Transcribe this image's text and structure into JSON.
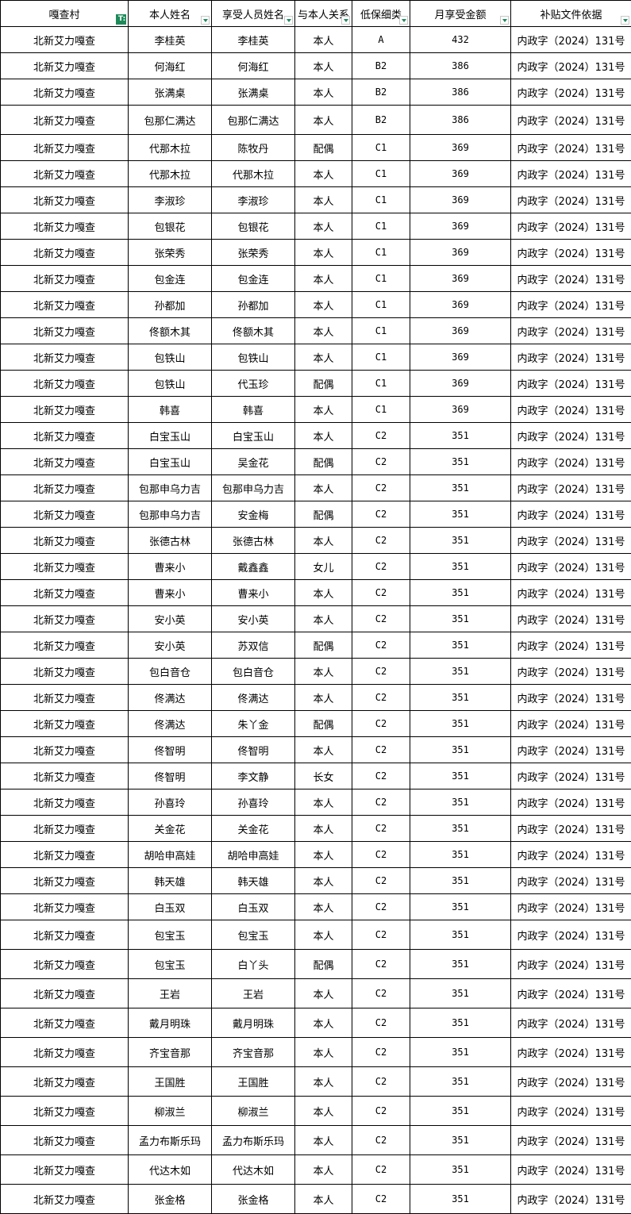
{
  "headers": [
    "嘎查村",
    "本人姓名",
    "享受人员姓名",
    "与本人关系",
    "低保细类",
    "月享受金额",
    "补贴文件依据"
  ],
  "filter_active_column": 0,
  "accent_color": "#1e8a5a",
  "rows": [
    [
      "北新艾力嘎查",
      "李桂英",
      "李桂英",
      "本人",
      "A",
      "432",
      "内政字（2024）131号"
    ],
    [
      "北新艾力嘎查",
      "何海红",
      "何海红",
      "本人",
      "B2",
      "386",
      "内政字（2024）131号"
    ],
    [
      "北新艾力嘎查",
      "张满桌",
      "张满桌",
      "本人",
      "B2",
      "386",
      "内政字（2024）131号"
    ],
    [
      "北新艾力嘎查",
      "包那仁满达",
      "包那仁满达",
      "本人",
      "B2",
      "386",
      "内政字（2024）131号"
    ],
    [
      "北新艾力嘎查",
      "代那木拉",
      "陈牧丹",
      "配偶",
      "C1",
      "369",
      "内政字（2024）131号"
    ],
    [
      "北新艾力嘎查",
      "代那木拉",
      "代那木拉",
      "本人",
      "C1",
      "369",
      "内政字（2024）131号"
    ],
    [
      "北新艾力嘎查",
      "李淑珍",
      "李淑珍",
      "本人",
      "C1",
      "369",
      "内政字（2024）131号"
    ],
    [
      "北新艾力嘎查",
      "包银花",
      "包银花",
      "本人",
      "C1",
      "369",
      "内政字（2024）131号"
    ],
    [
      "北新艾力嘎查",
      "张荣秀",
      "张荣秀",
      "本人",
      "C1",
      "369",
      "内政字（2024）131号"
    ],
    [
      "北新艾力嘎查",
      "包金连",
      "包金连",
      "本人",
      "C1",
      "369",
      "内政字（2024）131号"
    ],
    [
      "北新艾力嘎查",
      "孙都加",
      "孙都加",
      "本人",
      "C1",
      "369",
      "内政字（2024）131号"
    ],
    [
      "北新艾力嘎查",
      "佟额木其",
      "佟额木其",
      "本人",
      "C1",
      "369",
      "内政字（2024）131号"
    ],
    [
      "北新艾力嘎查",
      "包铁山",
      "包铁山",
      "本人",
      "C1",
      "369",
      "内政字（2024）131号"
    ],
    [
      "北新艾力嘎查",
      "包铁山",
      "代玉珍",
      "配偶",
      "C1",
      "369",
      "内政字（2024）131号"
    ],
    [
      "北新艾力嘎查",
      "韩喜",
      "韩喜",
      "本人",
      "C1",
      "369",
      "内政字（2024）131号"
    ],
    [
      "北新艾力嘎查",
      "白宝玉山",
      "白宝玉山",
      "本人",
      "C2",
      "351",
      "内政字（2024）131号"
    ],
    [
      "北新艾力嘎查",
      "白宝玉山",
      "吴金花",
      "配偶",
      "C2",
      "351",
      "内政字（2024）131号"
    ],
    [
      "北新艾力嘎查",
      "包那申乌力吉",
      "包那申乌力吉",
      "本人",
      "C2",
      "351",
      "内政字（2024）131号"
    ],
    [
      "北新艾力嘎查",
      "包那申乌力吉",
      "安金梅",
      "配偶",
      "C2",
      "351",
      "内政字（2024）131号"
    ],
    [
      "北新艾力嘎查",
      "张德古林",
      "张德古林",
      "本人",
      "C2",
      "351",
      "内政字（2024）131号"
    ],
    [
      "北新艾力嘎查",
      "曹来小",
      "戴鑫鑫",
      "女儿",
      "C2",
      "351",
      "内政字（2024）131号"
    ],
    [
      "北新艾力嘎查",
      "曹来小",
      "曹来小",
      "本人",
      "C2",
      "351",
      "内政字（2024）131号"
    ],
    [
      "北新艾力嘎查",
      "安小英",
      "安小英",
      "本人",
      "C2",
      "351",
      "内政字（2024）131号"
    ],
    [
      "北新艾力嘎查",
      "安小英",
      "苏双信",
      "配偶",
      "C2",
      "351",
      "内政字（2024）131号"
    ],
    [
      "北新艾力嘎查",
      "包白音仓",
      "包白音仓",
      "本人",
      "C2",
      "351",
      "内政字（2024）131号"
    ],
    [
      "北新艾力嘎查",
      "佟满达",
      "佟满达",
      "本人",
      "C2",
      "351",
      "内政字（2024）131号"
    ],
    [
      "北新艾力嘎查",
      "佟满达",
      "朱丫金",
      "配偶",
      "C2",
      "351",
      "内政字（2024）131号"
    ],
    [
      "北新艾力嘎查",
      "佟智明",
      "佟智明",
      "本人",
      "C2",
      "351",
      "内政字（2024）131号"
    ],
    [
      "北新艾力嘎查",
      "佟智明",
      "李文静",
      "长女",
      "C2",
      "351",
      "内政字（2024）131号"
    ],
    [
      "北新艾力嘎查",
      "孙喜玲",
      "孙喜玲",
      "本人",
      "C2",
      "351",
      "内政字（2024）131号"
    ],
    [
      "北新艾力嘎查",
      "关金花",
      "关金花",
      "本人",
      "C2",
      "351",
      "内政字（2024）131号"
    ],
    [
      "北新艾力嘎查",
      "胡哈申高娃",
      "胡哈申高娃",
      "本人",
      "C2",
      "351",
      "内政字（2024）131号"
    ],
    [
      "北新艾力嘎查",
      "韩天雄",
      "韩天雄",
      "本人",
      "C2",
      "351",
      "内政字（2024）131号"
    ],
    [
      "北新艾力嘎查",
      "白玉双",
      "白玉双",
      "本人",
      "C2",
      "351",
      "内政字（2024）131号"
    ],
    [
      "北新艾力嘎查",
      "包宝玉",
      "包宝玉",
      "本人",
      "C2",
      "351",
      "内政字（2024）131号"
    ],
    [
      "北新艾力嘎查",
      "包宝玉",
      "白丫头",
      "配偶",
      "C2",
      "351",
      "内政字（2024）131号"
    ],
    [
      "北新艾力嘎查",
      "王岩",
      "王岩",
      "本人",
      "C2",
      "351",
      "内政字（2024）131号"
    ],
    [
      "北新艾力嘎查",
      "戴月明珠",
      "戴月明珠",
      "本人",
      "C2",
      "351",
      "内政字（2024）131号"
    ],
    [
      "北新艾力嘎查",
      "齐宝音那",
      "齐宝音那",
      "本人",
      "C2",
      "351",
      "内政字（2024）131号"
    ],
    [
      "北新艾力嘎查",
      "王国胜",
      "王国胜",
      "本人",
      "C2",
      "351",
      "内政字（2024）131号"
    ],
    [
      "北新艾力嘎查",
      "柳淑兰",
      "柳淑兰",
      "本人",
      "C2",
      "351",
      "内政字（2024）131号"
    ],
    [
      "北新艾力嘎查",
      "孟力布斯乐玛",
      "孟力布斯乐玛",
      "本人",
      "C2",
      "351",
      "内政字（2024）131号"
    ],
    [
      "北新艾力嘎查",
      "代达木如",
      "代达木如",
      "本人",
      "C2",
      "351",
      "内政字（2024）131号"
    ],
    [
      "北新艾力嘎查",
      "张金格",
      "张金格",
      "本人",
      "C2",
      "351",
      "内政字（2024）131号"
    ]
  ]
}
